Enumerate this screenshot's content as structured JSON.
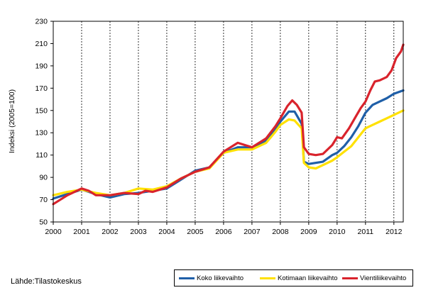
{
  "chart_data": {
    "type": "line",
    "ylabel": "Indeksi (2005=100)",
    "ylim": [
      50,
      230
    ],
    "yticks": [
      50,
      70,
      90,
      110,
      130,
      150,
      170,
      190,
      210,
      230
    ],
    "xlim": [
      2000,
      2012.33
    ],
    "xticks": [
      "2000",
      "2001",
      "2002",
      "2003",
      "2004",
      "2005",
      "2006",
      "2007",
      "2008",
      "2009",
      "2010",
      "2011",
      "2012"
    ],
    "grid": "vertical dashed at year marks",
    "legend_position": "bottom-right",
    "series": [
      {
        "name": "Koko liikevaihto",
        "color": "#1f5fa8",
        "points": [
          [
            2000.0,
            71
          ],
          [
            2000.5,
            75
          ],
          [
            2001.0,
            79
          ],
          [
            2001.5,
            75
          ],
          [
            2002.0,
            72
          ],
          [
            2002.5,
            75
          ],
          [
            2003.0,
            76
          ],
          [
            2003.5,
            78
          ],
          [
            2004.0,
            80
          ],
          [
            2004.5,
            88
          ],
          [
            2005.0,
            96
          ],
          [
            2005.5,
            99
          ],
          [
            2006.0,
            112
          ],
          [
            2006.5,
            117
          ],
          [
            2007.0,
            117
          ],
          [
            2007.5,
            123
          ],
          [
            2007.83,
            133
          ],
          [
            2008.0,
            140
          ],
          [
            2008.3,
            149
          ],
          [
            2008.5,
            149
          ],
          [
            2008.75,
            138
          ],
          [
            2008.83,
            104
          ],
          [
            2009.0,
            102
          ],
          [
            2009.5,
            104
          ],
          [
            2009.83,
            110
          ],
          [
            2010.0,
            112
          ],
          [
            2010.25,
            118
          ],
          [
            2010.5,
            126
          ],
          [
            2010.75,
            136
          ],
          [
            2011.0,
            148
          ],
          [
            2011.25,
            155
          ],
          [
            2011.5,
            158
          ],
          [
            2011.75,
            161
          ],
          [
            2012.0,
            165
          ],
          [
            2012.33,
            168
          ]
        ]
      },
      {
        "name": "Kotimaan liikevaihto",
        "color": "#ffe100",
        "points": [
          [
            2000.0,
            74
          ],
          [
            2000.5,
            77
          ],
          [
            2001.0,
            79
          ],
          [
            2001.5,
            76
          ],
          [
            2002.0,
            74
          ],
          [
            2002.5,
            76
          ],
          [
            2003.0,
            80
          ],
          [
            2003.5,
            79
          ],
          [
            2004.0,
            82
          ],
          [
            2004.5,
            89
          ],
          [
            2005.0,
            95
          ],
          [
            2005.5,
            98
          ],
          [
            2006.0,
            112
          ],
          [
            2006.5,
            115
          ],
          [
            2007.0,
            115
          ],
          [
            2007.5,
            121
          ],
          [
            2007.83,
            131
          ],
          [
            2008.0,
            137
          ],
          [
            2008.3,
            142
          ],
          [
            2008.5,
            141
          ],
          [
            2008.75,
            134
          ],
          [
            2008.83,
            103
          ],
          [
            2009.0,
            99
          ],
          [
            2009.25,
            98
          ],
          [
            2009.5,
            101
          ],
          [
            2009.83,
            105
          ],
          [
            2010.0,
            108
          ],
          [
            2010.25,
            113
          ],
          [
            2010.5,
            118
          ],
          [
            2010.75,
            126
          ],
          [
            2011.0,
            134
          ],
          [
            2011.25,
            137
          ],
          [
            2011.5,
            140
          ],
          [
            2011.75,
            143
          ],
          [
            2012.0,
            146
          ],
          [
            2012.33,
            150
          ]
        ]
      },
      {
        "name": "Vientiliikevaihto",
        "color": "#d9232c",
        "points": [
          [
            2000.0,
            66
          ],
          [
            2000.5,
            74
          ],
          [
            2001.0,
            80
          ],
          [
            2001.25,
            78
          ],
          [
            2001.5,
            74
          ],
          [
            2002.0,
            74
          ],
          [
            2002.5,
            76
          ],
          [
            2003.0,
            75
          ],
          [
            2003.25,
            78
          ],
          [
            2003.5,
            77
          ],
          [
            2004.0,
            81
          ],
          [
            2004.5,
            89
          ],
          [
            2005.0,
            95
          ],
          [
            2005.5,
            99
          ],
          [
            2006.0,
            113
          ],
          [
            2006.5,
            121
          ],
          [
            2007.0,
            117
          ],
          [
            2007.5,
            125
          ],
          [
            2007.83,
            136
          ],
          [
            2008.0,
            143
          ],
          [
            2008.25,
            154
          ],
          [
            2008.42,
            159
          ],
          [
            2008.58,
            155
          ],
          [
            2008.75,
            148
          ],
          [
            2008.83,
            117
          ],
          [
            2009.0,
            111
          ],
          [
            2009.25,
            110
          ],
          [
            2009.5,
            111
          ],
          [
            2009.83,
            119
          ],
          [
            2010.0,
            126
          ],
          [
            2010.17,
            125
          ],
          [
            2010.42,
            134
          ],
          [
            2010.67,
            145
          ],
          [
            2010.83,
            152
          ],
          [
            2011.0,
            158
          ],
          [
            2011.17,
            168
          ],
          [
            2011.33,
            176
          ],
          [
            2011.5,
            177
          ],
          [
            2011.75,
            180
          ],
          [
            2011.92,
            186
          ],
          [
            2012.08,
            197
          ],
          [
            2012.25,
            203
          ],
          [
            2012.33,
            209
          ]
        ]
      }
    ]
  },
  "source_text": "Lähde:Tilastokeskus"
}
